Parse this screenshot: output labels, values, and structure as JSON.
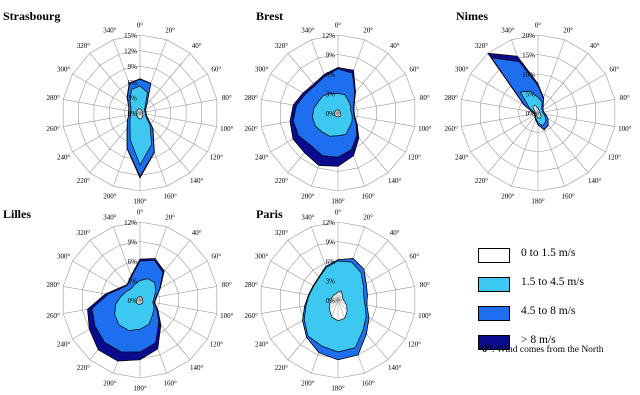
{
  "legend": {
    "items": [
      {
        "label": "0 to 1.5 m/s",
        "color": "#ffffff"
      },
      {
        "label": "1.5 to 4.5 m/s",
        "color": "#3cc8f0"
      },
      {
        "label": "4.5 to 8 m/s",
        "color": "#1e6ef0"
      },
      {
        "label": "> 8 m/s",
        "color": "#0a0a8c"
      }
    ],
    "note_symbol": "0°",
    "note_text": ": Wind comes from the North"
  },
  "chart_data": [
    {
      "type": "radar",
      "title": "Strasbourg",
      "angles": [
        0,
        20,
        40,
        60,
        80,
        100,
        120,
        140,
        160,
        180,
        200,
        220,
        240,
        260,
        280,
        300,
        320,
        340
      ],
      "rlim": [
        0,
        15
      ],
      "rticks": [
        "0%",
        "3%",
        "6%",
        "9%",
        "12%",
        "15%"
      ],
      "series": [
        {
          "name": "0 to 1.5 m/s",
          "values": [
            0.8,
            0.7,
            0.6,
            0.5,
            0.5,
            0.5,
            0.6,
            0.8,
            1.0,
            1.2,
            1.0,
            0.8,
            0.7,
            0.6,
            0.6,
            0.7,
            0.8,
            0.8
          ]
        },
        {
          "name": "1.5 to 4.5 m/s",
          "values": [
            5.2,
            4.2,
            1.5,
            1.0,
            1.0,
            1.0,
            1.3,
            3.0,
            6.5,
            10.0,
            5.5,
            3.0,
            2.2,
            1.8,
            1.8,
            2.0,
            3.0,
            4.8
          ]
        },
        {
          "name": "4.5 to 8 m/s",
          "values": [
            6.5,
            6.0,
            2.0,
            1.2,
            1.2,
            1.2,
            1.6,
            3.8,
            8.0,
            12.2,
            7.2,
            3.8,
            2.8,
            2.2,
            2.2,
            2.5,
            3.8,
            6.0
          ]
        },
        {
          "name": "> 8 m/s",
          "values": [
            6.6,
            6.1,
            2.0,
            1.2,
            1.2,
            1.2,
            1.6,
            3.9,
            8.1,
            12.5,
            7.3,
            3.9,
            2.8,
            2.2,
            2.2,
            2.5,
            3.9,
            6.1
          ]
        }
      ]
    },
    {
      "type": "radar",
      "title": "Brest",
      "angles": [
        0,
        20,
        40,
        60,
        80,
        100,
        120,
        140,
        160,
        180,
        200,
        220,
        240,
        260,
        280,
        300,
        320,
        340
      ],
      "rlim": [
        0,
        12
      ],
      "rticks": [
        "0%",
        "3%",
        "6%",
        "9%",
        "12%"
      ],
      "series": [
        {
          "name": "0 to 1.5 m/s",
          "values": [
            0.5,
            0.4,
            0.4,
            0.4,
            0.4,
            0.4,
            0.5,
            0.6,
            0.6,
            0.6,
            0.6,
            0.6,
            0.6,
            0.6,
            0.5,
            0.5,
            0.5,
            0.5
          ]
        },
        {
          "name": "1.5 to 4.5 m/s",
          "values": [
            3.0,
            3.0,
            2.5,
            2.2,
            2.0,
            2.2,
            2.5,
            2.8,
            3.5,
            3.5,
            3.8,
            3.8,
            4.0,
            4.0,
            3.8,
            3.5,
            3.5,
            3.2
          ]
        },
        {
          "name": "4.5 to 8 m/s",
          "values": [
            6.8,
            6.5,
            4.0,
            2.8,
            2.4,
            2.5,
            3.2,
            4.5,
            6.0,
            6.8,
            7.0,
            6.5,
            7.0,
            7.0,
            6.5,
            5.8,
            5.5,
            6.0
          ]
        },
        {
          "name": "> 8 m/s",
          "values": [
            7.0,
            7.0,
            4.2,
            2.9,
            2.5,
            2.6,
            3.4,
            5.0,
            7.0,
            8.2,
            8.6,
            8.0,
            8.0,
            7.5,
            7.0,
            6.2,
            5.8,
            6.3
          ]
        }
      ]
    },
    {
      "type": "radar",
      "title": "Nimes",
      "angles": [
        0,
        20,
        40,
        60,
        80,
        100,
        120,
        140,
        160,
        180,
        200,
        220,
        240,
        260,
        280,
        300,
        320,
        340
      ],
      "rlim": [
        0,
        20
      ],
      "rticks": [
        "0%",
        "5%",
        "10%",
        "15%",
        "20%"
      ],
      "series": [
        {
          "name": "0 to 1.5 m/s",
          "values": [
            1.2,
            0.8,
            0.6,
            0.5,
            0.5,
            0.6,
            0.8,
            1.2,
            1.5,
            1.2,
            0.8,
            0.6,
            0.5,
            0.5,
            0.6,
            1.0,
            2.0,
            2.2
          ]
        },
        {
          "name": "1.5 to 4.5 m/s",
          "values": [
            4.0,
            3.0,
            1.5,
            1.2,
            1.2,
            1.5,
            2.2,
            3.0,
            3.5,
            2.5,
            1.5,
            1.0,
            0.8,
            0.8,
            1.0,
            2.5,
            7.0,
            6.0
          ]
        },
        {
          "name": "4.5 to 8 m/s",
          "values": [
            7.0,
            4.0,
            2.0,
            1.5,
            1.5,
            2.0,
            3.0,
            4.0,
            4.5,
            3.0,
            1.8,
            1.2,
            1.0,
            1.0,
            1.5,
            4.0,
            18.5,
            14.0
          ]
        },
        {
          "name": "> 8 m/s",
          "values": [
            7.5,
            4.2,
            2.1,
            1.5,
            1.5,
            2.0,
            3.0,
            4.1,
            4.6,
            3.0,
            1.8,
            1.2,
            1.0,
            1.0,
            1.5,
            4.2,
            20.0,
            15.5
          ]
        }
      ]
    },
    {
      "type": "radar",
      "title": "Lilles",
      "angles": [
        0,
        20,
        40,
        60,
        80,
        100,
        120,
        140,
        160,
        180,
        200,
        220,
        240,
        260,
        280,
        300,
        320,
        340
      ],
      "rlim": [
        0,
        12
      ],
      "rticks": [
        "0%",
        "3%",
        "6%",
        "9%",
        "12%"
      ],
      "series": [
        {
          "name": "0 to 1.5 m/s",
          "values": [
            0.6,
            0.5,
            0.5,
            0.4,
            0.4,
            0.4,
            0.5,
            0.6,
            0.6,
            0.7,
            0.7,
            0.7,
            0.7,
            0.6,
            0.5,
            0.5,
            0.5,
            0.5
          ]
        },
        {
          "name": "1.5 to 4.5 m/s",
          "values": [
            3.0,
            3.5,
            3.5,
            2.8,
            2.2,
            2.0,
            2.5,
            3.0,
            4.0,
            4.5,
            5.0,
            5.0,
            4.5,
            3.8,
            3.0,
            2.5,
            2.2,
            2.5
          ]
        },
        {
          "name": "4.5 to 8 m/s",
          "values": [
            6.0,
            6.5,
            5.5,
            3.5,
            2.5,
            2.2,
            3.0,
            4.5,
            7.0,
            8.0,
            8.5,
            8.5,
            8.0,
            7.5,
            5.0,
            3.5,
            3.0,
            3.8
          ]
        },
        {
          "name": "> 8 m/s",
          "values": [
            6.3,
            6.8,
            5.8,
            3.6,
            2.6,
            2.3,
            3.2,
            5.0,
            8.0,
            9.2,
            10.0,
            10.0,
            9.0,
            8.2,
            5.4,
            3.7,
            3.1,
            4.0
          ]
        }
      ]
    },
    {
      "type": "radar",
      "title": "Paris",
      "angles": [
        0,
        20,
        40,
        60,
        80,
        100,
        120,
        140,
        160,
        180,
        200,
        220,
        240,
        260,
        280,
        300,
        320,
        340
      ],
      "rlim": [
        0,
        12
      ],
      "rticks": [
        "0%",
        "3%",
        "6%",
        "9%",
        "12%"
      ],
      "series": [
        {
          "name": "0 to 1.5 m/s",
          "values": [
            1.2,
            1.5,
            1.0,
            0.8,
            0.8,
            1.0,
            1.5,
            2.2,
            3.0,
            3.2,
            2.8,
            2.0,
            1.5,
            1.2,
            1.0,
            1.0,
            1.0,
            1.0
          ]
        },
        {
          "name": "1.5 to 4.5 m/s",
          "values": [
            6.0,
            6.2,
            5.5,
            4.5,
            4.0,
            4.2,
            5.0,
            6.0,
            7.8,
            8.0,
            7.5,
            7.2,
            6.0,
            5.0,
            4.5,
            4.3,
            4.5,
            5.3
          ]
        },
        {
          "name": "4.5 to 8 m/s",
          "values": [
            6.2,
            6.8,
            6.2,
            5.0,
            4.6,
            4.5,
            5.5,
            6.8,
            9.0,
            9.2,
            8.6,
            7.5,
            6.3,
            5.2,
            4.6,
            4.4,
            4.6,
            5.5
          ]
        },
        {
          "name": "> 8 m/s",
          "values": [
            6.2,
            6.8,
            6.2,
            5.0,
            4.6,
            4.5,
            5.5,
            6.8,
            9.0,
            9.2,
            8.6,
            7.5,
            6.3,
            5.2,
            4.6,
            4.4,
            4.6,
            5.5
          ]
        }
      ]
    }
  ]
}
